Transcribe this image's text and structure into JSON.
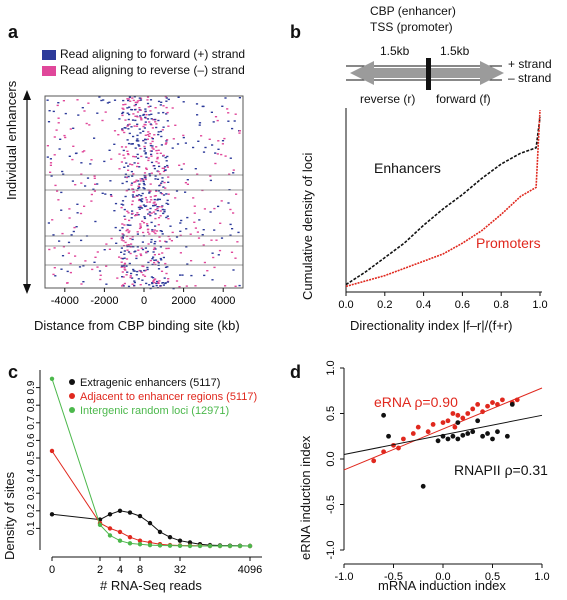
{
  "panels": {
    "a": {
      "letter": "a",
      "legend": [
        {
          "label": "Read aligning to forward (+) strand",
          "color": "#2c3a9a"
        },
        {
          "label": "Read aligning to reverse (–) strand",
          "color": "#e0479a"
        }
      ],
      "ylabel": "Individual enhancers",
      "xlabel": "Distance from CBP binding site (kb)",
      "xticks": [
        "-4000",
        "-2000",
        "0",
        "2000",
        "4000"
      ]
    },
    "b": {
      "letter": "b",
      "diagram": {
        "line1": "CBP (enhancer)",
        "line2": "TSS (promoter)",
        "left_dist": "1.5kb",
        "right_dist": "1.5kb",
        "plus_strand": "+ strand",
        "minus_strand": "– strand",
        "reverse_label": "reverse (r)",
        "forward_label": "forward (f)"
      },
      "ylabel": "Cumulative density of loci",
      "xlabel": "Directionality index |f–r|/(f+r)",
      "label_enhancers": "Enhancers",
      "label_promoters": "Promoters",
      "xticks": [
        "0.0",
        "0.2",
        "0.4",
        "0.6",
        "0.8",
        "1.0"
      ]
    },
    "c": {
      "letter": "c",
      "ylabel": "Density of sites",
      "xlabel": "# RNA-Seq reads",
      "xticks": [
        "0",
        "2",
        "4",
        "8",
        "32",
        "4096"
      ],
      "yticks": [
        "0.1",
        "0.2",
        "0.3",
        "0.4",
        "0.5",
        "0.6",
        "0.7",
        "0.8",
        "0.9"
      ]
    },
    "d": {
      "letter": "d",
      "ylabel": "eRNA induction index",
      "xlabel": "mRNA induction index",
      "label_erna": "eRNA ρ=0.90",
      "label_rnapii": "RNAPII ρ=0.31",
      "xticks": [
        "-1.0",
        "-0.5",
        "0.0",
        "0.5",
        "1.0"
      ],
      "yticks": [
        "-1.0",
        "-0.5",
        "0.0",
        "0.5",
        "1.0"
      ]
    }
  },
  "chart_data": [
    {
      "panel": "a",
      "type": "heatmap",
      "xlabel": "Distance from CBP binding site (kb)",
      "ylabel": "Individual enhancers",
      "xlim": [
        -5000,
        5000
      ],
      "series": [
        {
          "name": "Read aligning to forward (+) strand",
          "color": "#2c3a9a"
        },
        {
          "name": "Read aligning to reverse (–) strand",
          "color": "#e0479a"
        }
      ]
    },
    {
      "panel": "b",
      "type": "line",
      "xlabel": "Directionality index |f–r|/(f+r)",
      "ylabel": "Cumulative density of loci",
      "xlim": [
        0,
        1
      ],
      "ylim": [
        0,
        1
      ],
      "series": [
        {
          "name": "Enhancers",
          "color": "#111111",
          "x": [
            0.0,
            0.1,
            0.2,
            0.3,
            0.4,
            0.5,
            0.6,
            0.7,
            0.8,
            0.9,
            0.98,
            1.0
          ],
          "y": [
            0.03,
            0.1,
            0.18,
            0.26,
            0.36,
            0.45,
            0.53,
            0.62,
            0.7,
            0.76,
            0.79,
            0.96
          ]
        },
        {
          "name": "Promoters",
          "color": "#e0281e",
          "x": [
            0.0,
            0.1,
            0.2,
            0.3,
            0.4,
            0.5,
            0.6,
            0.7,
            0.8,
            0.9,
            0.98,
            1.0
          ],
          "y": [
            0.02,
            0.05,
            0.08,
            0.12,
            0.16,
            0.2,
            0.26,
            0.33,
            0.42,
            0.52,
            0.57,
            1.0
          ]
        }
      ]
    },
    {
      "panel": "c",
      "type": "line",
      "xlabel": "# RNA-Seq reads",
      "ylabel": "Density of sites",
      "x_positions": [
        0,
        2,
        3,
        4,
        6,
        8,
        12,
        16,
        24,
        32,
        64,
        128,
        256,
        512,
        1024,
        2048,
        4096
      ],
      "ylim": [
        0,
        1
      ],
      "series": [
        {
          "name": "Extragenic enhancers (5117)",
          "color": "#111111",
          "values": [
            0.18,
            0.15,
            0.18,
            0.2,
            0.19,
            0.17,
            0.13,
            0.08,
            0.05,
            0.03,
            0.02,
            0.01,
            0.005,
            0.003,
            0.002,
            0.001,
            0.0
          ]
        },
        {
          "name": "Adjacent to enhancer regions (5117)",
          "color": "#e0281e",
          "values": [
            0.54,
            0.13,
            0.1,
            0.08,
            0.05,
            0.03,
            0.02,
            0.01,
            0.005,
            0.003,
            0.002,
            0.001,
            0.0,
            0.0,
            0.0,
            0.0,
            0.0
          ]
        },
        {
          "name": "Intergenic random loci (12971)",
          "color": "#4cb84c",
          "values": [
            0.95,
            0.12,
            0.06,
            0.03,
            0.015,
            0.01,
            0.005,
            0.003,
            0.002,
            0.001,
            0.0,
            0.0,
            0.0,
            0.0,
            0.0,
            0.0,
            0.0
          ]
        }
      ]
    },
    {
      "panel": "d",
      "type": "scatter",
      "xlabel": "mRNA induction index",
      "ylabel": "eRNA induction index",
      "xlim": [
        -1.0,
        1.0
      ],
      "ylim": [
        -1.0,
        1.0
      ],
      "series": [
        {
          "name": "eRNA",
          "color": "#e0281e",
          "fit": {
            "x": [
              -1.0,
              1.0
            ],
            "y": [
              -0.12,
              0.78
            ]
          },
          "points": [
            [
              -0.6,
              0.08
            ],
            [
              -0.5,
              0.15
            ],
            [
              -0.45,
              0.12
            ],
            [
              -0.4,
              0.22
            ],
            [
              -0.3,
              0.28
            ],
            [
              -0.25,
              0.35
            ],
            [
              -0.15,
              0.3
            ],
            [
              -0.1,
              0.38
            ],
            [
              0.0,
              0.4
            ],
            [
              0.05,
              0.42
            ],
            [
              0.1,
              0.5
            ],
            [
              0.12,
              0.35
            ],
            [
              0.2,
              0.45
            ],
            [
              0.25,
              0.5
            ],
            [
              0.3,
              0.55
            ],
            [
              0.35,
              0.6
            ],
            [
              0.4,
              0.52
            ],
            [
              0.5,
              0.62
            ],
            [
              0.55,
              0.6
            ],
            [
              0.6,
              0.65
            ],
            [
              0.7,
              0.62
            ],
            [
              0.75,
              0.65
            ],
            [
              -0.7,
              -0.02
            ],
            [
              0.15,
              0.48
            ],
            [
              0.45,
              0.58
            ]
          ]
        },
        {
          "name": "RNAPII",
          "color": "#111111",
          "fit": {
            "x": [
              -1.0,
              1.0
            ],
            "y": [
              0.05,
              0.48
            ]
          },
          "points": [
            [
              -0.6,
              0.48
            ],
            [
              -0.55,
              0.25
            ],
            [
              -0.2,
              -0.3
            ],
            [
              -0.05,
              0.2
            ],
            [
              0.0,
              0.25
            ],
            [
              0.05,
              0.22
            ],
            [
              0.1,
              0.25
            ],
            [
              0.15,
              0.22
            ],
            [
              0.2,
              0.26
            ],
            [
              0.25,
              0.28
            ],
            [
              0.3,
              0.3
            ],
            [
              0.35,
              0.42
            ],
            [
              0.4,
              0.25
            ],
            [
              0.45,
              0.28
            ],
            [
              0.5,
              0.22
            ],
            [
              0.55,
              0.3
            ],
            [
              0.65,
              0.25
            ],
            [
              0.7,
              0.6
            ],
            [
              0.15,
              0.4
            ]
          ]
        }
      ]
    }
  ]
}
